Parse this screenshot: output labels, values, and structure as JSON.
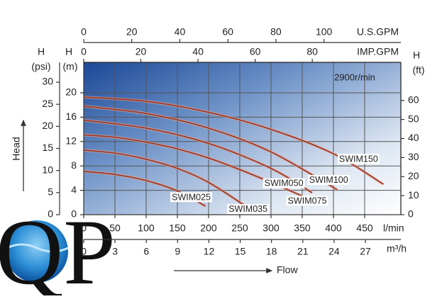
{
  "chart_data": {
    "type": "line",
    "annotation": "2900r/min",
    "xlabel": "Flow",
    "ylabel": "Head",
    "x_unit": "l/min",
    "xlim": [
      0,
      508
    ],
    "xticks": [
      0,
      50,
      100,
      150,
      200,
      250,
      300,
      350,
      400,
      450
    ],
    "y_label": "H",
    "y_unit": "(m)",
    "ylim": [
      0,
      25
    ],
    "yticks": [
      0,
      4,
      8,
      12,
      16,
      20
    ],
    "grid": true,
    "secondary_axes": [
      {
        "side": "left",
        "label": "H",
        "unit": "(psi)",
        "lim": [
          0,
          34.5
        ],
        "ticks": [
          0,
          5,
          10,
          15,
          20,
          25,
          30
        ]
      },
      {
        "side": "right",
        "label": "H",
        "unit": "(ft)",
        "lim": [
          0,
          80
        ],
        "ticks": [
          0,
          10,
          20,
          30,
          40,
          50,
          60
        ]
      },
      {
        "side": "top",
        "unit": "U.S.GPM",
        "lim": [
          0,
          132
        ],
        "ticks": [
          0,
          20,
          40,
          60,
          80,
          100
        ]
      },
      {
        "side": "top",
        "unit": "IMP.GPM",
        "lim": [
          0,
          111
        ],
        "ticks": [
          0,
          20,
          40,
          60,
          80
        ]
      },
      {
        "side": "bottom",
        "unit": "m³/h",
        "lim": [
          0,
          30.4
        ],
        "ticks": [
          0,
          3,
          6,
          9,
          12,
          15,
          18,
          21,
          24,
          27
        ]
      }
    ],
    "series": [
      {
        "name": "SWIM025",
        "color": "#9e3b2c",
        "x": [
          0,
          50,
          100,
          150,
          195
        ],
        "values": [
          7.1,
          6.6,
          5.6,
          3.9,
          1.4
        ]
      },
      {
        "name": "SWIM035",
        "color": "#9e3b2c",
        "x": [
          0,
          50,
          100,
          150,
          200,
          261
        ],
        "values": [
          10.6,
          10.1,
          9.1,
          7.6,
          5.3,
          1.3
        ]
      },
      {
        "name": "SWIM050",
        "color": "#9e3b2c",
        "x": [
          0,
          50,
          100,
          150,
          200,
          250,
          300,
          349
        ],
        "values": [
          13.1,
          12.7,
          11.9,
          10.8,
          9.3,
          7.4,
          5.3,
          3.1
        ]
      },
      {
        "name": "SWIM075",
        "color": "#9e3b2c",
        "x": [
          0,
          100,
          200,
          300,
          366
        ],
        "values": [
          15.5,
          14.2,
          11.7,
          7.6,
          3.6
        ]
      },
      {
        "name": "SWIM100",
        "color": "#9e3b2c",
        "x": [
          0,
          100,
          200,
          300,
          406
        ],
        "values": [
          17.8,
          16.6,
          14.2,
          10.3,
          4.1
        ]
      },
      {
        "name": "SWIM150",
        "color": "#9e3b2c",
        "x": [
          0,
          100,
          200,
          300,
          400,
          480
        ],
        "values": [
          19.3,
          18.6,
          16.8,
          14.0,
          10.0,
          5.0
        ]
      }
    ]
  },
  "logo": "QP"
}
